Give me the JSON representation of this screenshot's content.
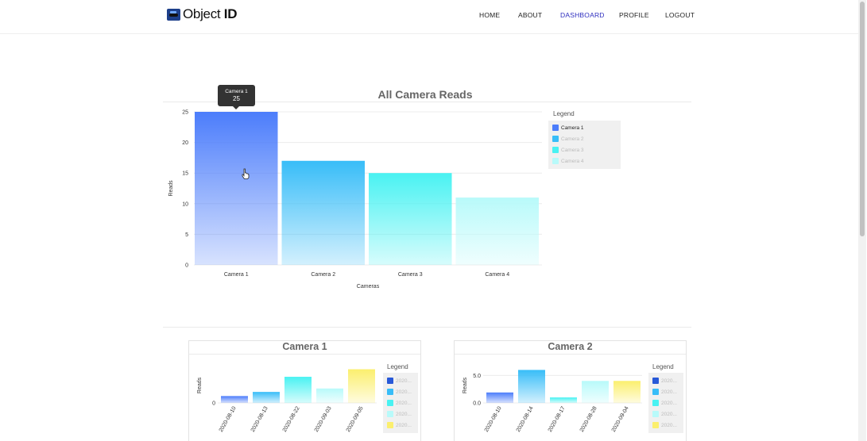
{
  "nav": {
    "brand_plain": "Object",
    "brand_bold": "ID",
    "links": [
      "HOME",
      "ABOUT",
      "DASHBOARD",
      "PROFILE",
      "LOGOUT"
    ],
    "active": "DASHBOARD"
  },
  "colors": {
    "camera1": "#4c7dfb",
    "camera2": "#38bdf8",
    "camera3": "#49f2f2",
    "camera4": "#b8fafa",
    "camera5": "#fbef6e",
    "active_link": "#2f2fbf"
  },
  "tooltip": {
    "label": "Camera 1",
    "value": "25"
  },
  "main_chart": {
    "legend_title": "Legend",
    "chart_data": {
      "type": "bar",
      "title": "All Camera Reads",
      "xlabel": "Cameras",
      "ylabel": "Reads",
      "categories": [
        "Camera 1",
        "Camera 2",
        "Camera 3",
        "Camera 4"
      ],
      "values": [
        25,
        17,
        15,
        11
      ],
      "ylim": [
        0,
        25
      ],
      "yticks": [
        0,
        5,
        10,
        15,
        20,
        25
      ],
      "legend": [
        "Camera 1",
        "Camera 2",
        "Camera 3",
        "Camera 4"
      ],
      "legend_placement": "right",
      "grid": true
    }
  },
  "small_charts": [
    {
      "legend_title": "Legend",
      "legend_labels": [
        "2020...",
        "2020...",
        "2020...",
        "2020...",
        "2020..."
      ],
      "chart_data": {
        "type": "bar",
        "title": "Camera 1",
        "ylabel": "Reads",
        "categories": [
          "2020-08-10",
          "2020-08-13",
          "2020-08-22",
          "2020-09-03",
          "2020-09-05"
        ],
        "values": [
          1.0,
          1.6,
          3.8,
          2.1,
          4.9
        ],
        "ylim": [
          0,
          6
        ],
        "yticks": [
          "0"
        ]
      }
    },
    {
      "legend_title": "Legend",
      "legend_labels": [
        "2020...",
        "2020...",
        "2020...",
        "2020...",
        "2020..."
      ],
      "chart_data": {
        "type": "bar",
        "title": "Camera 2",
        "ylabel": "Reads",
        "categories": [
          "2020-08-10",
          "2020-08-14",
          "2020-08-17",
          "2020-08-28",
          "2020-09-04"
        ],
        "values": [
          1.9,
          6.0,
          1.0,
          4.0,
          4.0
        ],
        "ylim": [
          0,
          7.5
        ],
        "yticks": [
          "0.0",
          "5.0"
        ]
      }
    }
  ]
}
